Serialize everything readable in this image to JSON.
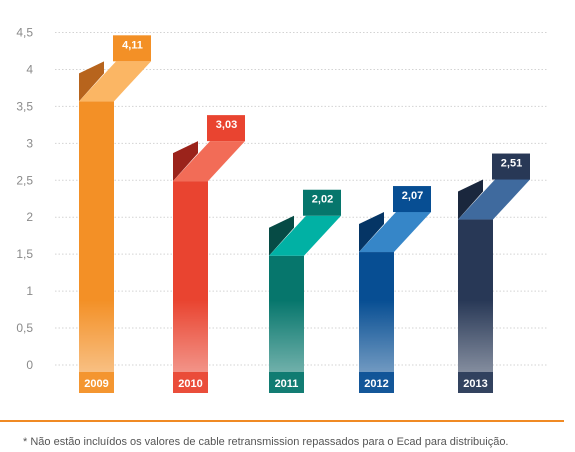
{
  "chart_data": {
    "type": "bar",
    "categories": [
      "2009",
      "2010",
      "2011",
      "2012",
      "2013"
    ],
    "values": [
      4.11,
      3.03,
      2.02,
      2.07,
      2.51
    ],
    "value_labels": [
      "4,11",
      "3,03",
      "2,02",
      "2,07",
      "2,51"
    ],
    "y_ticks": [
      0,
      0.5,
      1,
      1.5,
      2,
      2.5,
      3,
      3.5,
      4,
      4.5
    ],
    "y_tick_labels": [
      "0",
      "0,5",
      "1",
      "1,5",
      "2",
      "2,5",
      "3",
      "3,5",
      "4",
      "4,5"
    ],
    "ylim": [
      0,
      4.5
    ],
    "grid": true,
    "title": "",
    "xlabel": "",
    "ylabel": "",
    "colors": [
      {
        "front": "#F39026",
        "top": "#FBB664",
        "side": "#B7641D",
        "label": "#F39026"
      },
      {
        "front": "#E94430",
        "top": "#F26C57",
        "side": "#9B231B",
        "label": "#E94430"
      },
      {
        "front": "#06766C",
        "top": "#01B1A4",
        "side": "#064B45",
        "label": "#06766C"
      },
      {
        "front": "#074E93",
        "top": "#3686C8",
        "side": "#053565",
        "label": "#074E93"
      },
      {
        "front": "#283856",
        "top": "#3F6A9E",
        "side": "#1A273D",
        "label": "#283856"
      }
    ]
  },
  "footnote": "* Não estão incluídos os valores de cable retransmission repassados para o Ecad para distribuição.",
  "accent_color": "#F08A24"
}
